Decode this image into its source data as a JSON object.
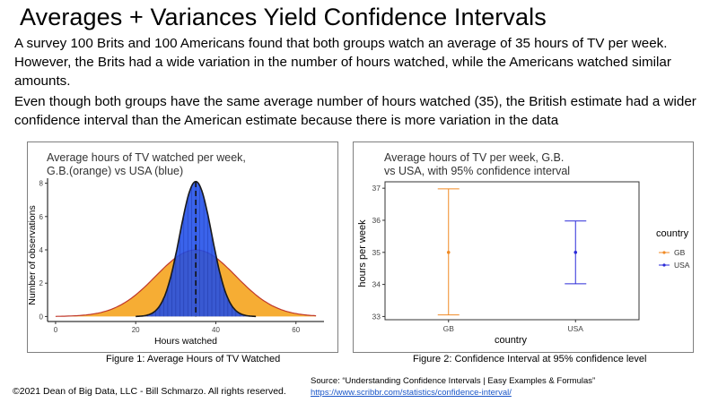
{
  "slide": {
    "title": "Averages + Variances Yield Confidence Intervals",
    "paragraph1": "A survey 100 Brits and 100 Americans found that both groups watch an average of 35 hours of TV per week. However, the Brits had a wide variation in the number of hours watched, while the Americans watched similar amounts.",
    "paragraph2": "Even though both groups have the same average number of hours watched (35), the British estimate had a wider confidence interval than the American estimate because there is more variation in the data",
    "caption1": "Figure 1: Average Hours of TV Watched",
    "caption2": "Figure 2: Confidence Interval at 95% confidence level",
    "copyright": "©2021 Dean of Big Data, LLC - Bill Schmarzo. All rights reserved.",
    "source": "Source: “Understanding Confidence Intervals | Easy Examples & Formulas”",
    "source_link": "https://www.scribbr.com/statistics/confidence-interval/"
  },
  "chart_data": [
    {
      "type": "area",
      "title": "Average hours of TV watched per week,",
      "subtitle": "G.B.(orange) vs USA (blue)",
      "xlabel": "Hours watched",
      "ylabel": "Number of observations",
      "xlim": [
        -2,
        67
      ],
      "ylim": [
        -0.3,
        8.3
      ],
      "xticks": [
        0,
        20,
        40,
        60
      ],
      "yticks": [
        0,
        2,
        4,
        6,
        8
      ],
      "mean_line": 35,
      "series": [
        {
          "color": "#f5a623",
          "edge": "#c0392b",
          "mean": 35,
          "sd": 10,
          "peak": 4.0,
          "range": [
            0,
            65
          ]
        },
        {
          "color": "#1f4de8",
          "edge": "#1a1a1a",
          "mean": 35,
          "sd": 4,
          "peak": 8.1,
          "range": [
            20,
            50
          ]
        }
      ],
      "grid": false
    },
    {
      "type": "scatter",
      "title": "Average hours of TV per week, G.B.",
      "subtitle": "vs USA, with 95% confidence interval",
      "xlabel": "country",
      "ylabel": "hours per week",
      "categories": [
        "GB",
        "USA"
      ],
      "ylim": [
        32.9,
        37.2
      ],
      "yticks": [
        33,
        34,
        35,
        36,
        37
      ],
      "points": [
        {
          "category": "GB",
          "value": 35,
          "lower": 33.05,
          "upper": 36.98,
          "color": "#f08a24"
        },
        {
          "category": "USA",
          "value": 35,
          "lower": 34.02,
          "upper": 35.98,
          "color": "#2a2ad8"
        }
      ],
      "legend": {
        "title": "country",
        "entries": [
          "GB",
          "USA"
        ],
        "position": "right"
      },
      "grid": false
    }
  ]
}
